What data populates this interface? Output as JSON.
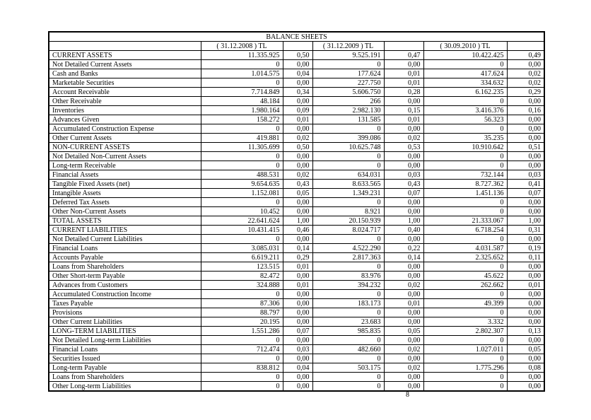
{
  "page": {
    "number": "8"
  },
  "table": {
    "title": "BALANCE SHEETS",
    "periods": [
      "( 31.12.2008 )  TL",
      "( 31.12.2009 )  TL",
      "( 30.09.2010 )  TL"
    ],
    "rows": [
      {
        "label": "CURRENT ASSETS",
        "values": [
          "11.335.925",
          "0,50",
          "9.525.191",
          "0,47",
          "10.422.425",
          "0,49"
        ]
      },
      {
        "label": "Not Detailed Current Assets",
        "values": [
          "0",
          "0,00",
          "0",
          "0,00",
          "0",
          "0,00"
        ]
      },
      {
        "label": "Cash and Banks",
        "values": [
          "1.014.575",
          "0,04",
          "177.624",
          "0,01",
          "417.624",
          "0,02"
        ]
      },
      {
        "label": "Marketable Securities",
        "values": [
          "0",
          "0,00",
          "227.750",
          "0,01",
          "334.632",
          "0,02"
        ]
      },
      {
        "label": "Account Receivable",
        "values": [
          "7.714.849",
          "0,34",
          "5.606.750",
          "0,28",
          "6.162.235",
          "0,29"
        ]
      },
      {
        "label": "Other Receivable",
        "values": [
          "48.184",
          "0,00",
          "266",
          "0,00",
          "0",
          "0,00"
        ]
      },
      {
        "label": "Inventories",
        "values": [
          "1.980.164",
          "0,09",
          "2.982.130",
          "0,15",
          "3.416.376",
          "0,16"
        ]
      },
      {
        "label": "Advances Given",
        "values": [
          "158.272",
          "0,01",
          "131.585",
          "0,01",
          "56.323",
          "0,00"
        ]
      },
      {
        "label": "Accumulated Construction Expense",
        "values": [
          "0",
          "0,00",
          "0",
          "0,00",
          "0",
          "0,00"
        ]
      },
      {
        "label": "Other Current Assets",
        "values": [
          "419.881",
          "0,02",
          "399.086",
          "0,02",
          "35.235",
          "0,00"
        ]
      },
      {
        "label": "NON-CURRENT ASSETS",
        "values": [
          "11.305.699",
          "0,50",
          "10.625.748",
          "0,53",
          "10.910.642",
          "0,51"
        ]
      },
      {
        "label": "Not Detailed Non-Current Assets",
        "values": [
          "0",
          "0,00",
          "0",
          "0,00",
          "0",
          "0,00"
        ]
      },
      {
        "label": "Long-term Receivable",
        "values": [
          "0",
          "0,00",
          "0",
          "0,00",
          "0",
          "0,00"
        ]
      },
      {
        "label": "Financial Assets",
        "values": [
          "488.531",
          "0,02",
          "634.031",
          "0,03",
          "732.144",
          "0,03"
        ]
      },
      {
        "label": "Tangible Fixed Assets (net)",
        "values": [
          "9.654.635",
          "0,43",
          "8.633.565",
          "0,43",
          "8.727.362",
          "0,41"
        ]
      },
      {
        "label": "Intangible Assets",
        "values": [
          "1.152.081",
          "0,05",
          "1.349.231",
          "0,07",
          "1.451.136",
          "0,07"
        ]
      },
      {
        "label": "Deferred Tax Assets",
        "values": [
          "0",
          "0,00",
          "0",
          "0,00",
          "0",
          "0,00"
        ]
      },
      {
        "label": "Other Non-Current Assets",
        "values": [
          "10.452",
          "0,00",
          "8.921",
          "0,00",
          "0",
          "0,00"
        ]
      },
      {
        "label": "TOTAL ASSETS",
        "values": [
          "22.641.624",
          "1,00",
          "20.150.939",
          "1,00",
          "21.333.067",
          "1,00"
        ]
      },
      {
        "label": "CURRENT LIABILITIES",
        "values": [
          "10.431.415",
          "0,46",
          "8.024.717",
          "0,40",
          "6.718.254",
          "0,31"
        ]
      },
      {
        "label": "Not Detailed Current Liabilities",
        "values": [
          "0",
          "0,00",
          "0",
          "0,00",
          "0",
          "0,00"
        ]
      },
      {
        "label": "Financial Loans",
        "values": [
          "3.085.031",
          "0,14",
          "4.522.290",
          "0,22",
          "4.031.587",
          "0,19"
        ]
      },
      {
        "label": "Accounts Payable",
        "values": [
          "6.619.211",
          "0,29",
          "2.817.363",
          "0,14",
          "2.325.652",
          "0,11"
        ]
      },
      {
        "label": "Loans from Shareholders",
        "values": [
          "123.515",
          "0,01",
          "0",
          "0,00",
          "0",
          "0,00"
        ]
      },
      {
        "label": "Other Short-term Payable",
        "values": [
          "82.472",
          "0,00",
          "83.976",
          "0,00",
          "45.622",
          "0,00"
        ]
      },
      {
        "label": "Advances from Customers",
        "values": [
          "324.888",
          "0,01",
          "394.232",
          "0,02",
          "262.662",
          "0,01"
        ]
      },
      {
        "label": "Accumulated Construction Income",
        "values": [
          "0",
          "0,00",
          "0",
          "0,00",
          "0",
          "0,00"
        ]
      },
      {
        "label": "Taxes Payable",
        "values": [
          "87.306",
          "0,00",
          "183.173",
          "0,01",
          "49.399",
          "0,00"
        ]
      },
      {
        "label": "Provisions",
        "values": [
          "88.797",
          "0,00",
          "0",
          "0,00",
          "0",
          "0,00"
        ]
      },
      {
        "label": "Other Current Liabilities",
        "values": [
          "20.195",
          "0,00",
          "23.683",
          "0,00",
          "3.332",
          "0,00"
        ]
      },
      {
        "label": "LONG-TERM LIABILITIES",
        "values": [
          "1.551.286",
          "0,07",
          "985.835",
          "0,05",
          "2.802.307",
          "0,13"
        ]
      },
      {
        "label": "Not Detailed Long-term Liabilities",
        "values": [
          "0",
          "0,00",
          "0",
          "0,00",
          "0",
          "0,00"
        ]
      },
      {
        "label": "Financial Loans",
        "values": [
          "712.474",
          "0,03",
          "482.660",
          "0,02",
          "1.027.011",
          "0,05"
        ]
      },
      {
        "label": "Securities Issued",
        "values": [
          "0",
          "0,00",
          "0",
          "0,00",
          "0",
          "0,00"
        ]
      },
      {
        "label": "Long-term Payable",
        "values": [
          "838.812",
          "0,04",
          "503.175",
          "0,02",
          "1.775.296",
          "0,08"
        ]
      },
      {
        "label": "Loans from Shareholders",
        "values": [
          "0",
          "0,00",
          "0",
          "0,00",
          "0",
          "0,00"
        ]
      },
      {
        "label": "Other Long-term Liabilities",
        "values": [
          "0",
          "0,00",
          "0",
          "0,00",
          "0",
          "0,00"
        ]
      }
    ]
  }
}
